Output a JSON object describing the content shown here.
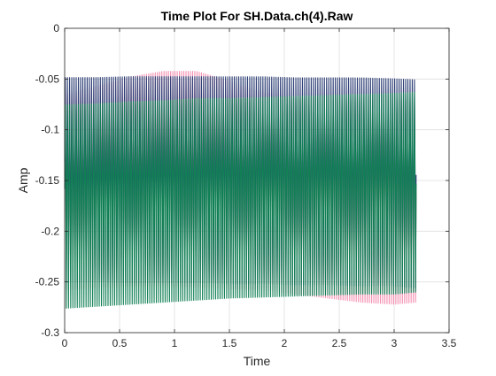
{
  "chart_data": {
    "type": "line",
    "title": "Time Plot For SH.Data.ch(4).Raw",
    "xlabel": "Time",
    "ylabel": "Amp",
    "xlim": [
      0,
      3.5
    ],
    "ylim": [
      -0.3,
      0
    ],
    "grid": true,
    "legend": "none",
    "x_ticks": [
      {
        "value": 0,
        "label": "0"
      },
      {
        "value": 0.5,
        "label": "0.5"
      },
      {
        "value": 1,
        "label": "1"
      },
      {
        "value": 1.5,
        "label": "1.5"
      },
      {
        "value": 2,
        "label": "2"
      },
      {
        "value": 2.5,
        "label": "2.5"
      },
      {
        "value": 3,
        "label": "3"
      },
      {
        "value": 3.5,
        "label": "3.5"
      }
    ],
    "y_ticks": [
      {
        "value": 0,
        "label": "0"
      },
      {
        "value": -0.05,
        "label": "-0.05"
      },
      {
        "value": -0.1,
        "label": "-0.1"
      },
      {
        "value": -0.15,
        "label": "-0.15"
      },
      {
        "value": -0.2,
        "label": "-0.2"
      },
      {
        "value": -0.25,
        "label": "-0.25"
      },
      {
        "value": -0.3,
        "label": "-0.3"
      }
    ],
    "series": [
      {
        "color": "#f48fb1",
        "time_range": [
          0,
          3.2
        ],
        "cycles": 160,
        "envelope": {
          "t": [
            0,
            0.3,
            0.6,
            0.9,
            1.2,
            1.5,
            1.8,
            2.1,
            2.4,
            2.7,
            3.0,
            3.2
          ],
          "max": [
            -0.048,
            -0.04,
            -0.03,
            -0.024,
            -0.024,
            -0.034,
            -0.046,
            -0.051,
            -0.053,
            -0.053,
            -0.052,
            -0.054
          ],
          "min": [
            -0.258,
            -0.256,
            -0.254,
            -0.254,
            -0.255,
            -0.257,
            -0.258,
            -0.262,
            -0.266,
            -0.27,
            -0.272,
            -0.27
          ]
        }
      },
      {
        "color": "#2c3e75",
        "time_range": [
          0,
          3.2
        ],
        "cycles": 160,
        "envelope": {
          "t": [
            0,
            0.3,
            0.6,
            0.9,
            1.2,
            1.5,
            1.8,
            2.1,
            2.4,
            2.7,
            3.0,
            3.2
          ],
          "max": [
            -0.031,
            -0.031,
            -0.03,
            -0.03,
            -0.03,
            -0.03,
            -0.03,
            -0.031,
            -0.031,
            -0.031,
            -0.032,
            -0.033
          ],
          "min": [
            -0.25,
            -0.25,
            -0.251,
            -0.251,
            -0.251,
            -0.252,
            -0.252,
            -0.253,
            -0.253,
            -0.254,
            -0.254,
            -0.256
          ]
        }
      },
      {
        "color": "#118055",
        "time_range": [
          0,
          3.2
        ],
        "cycles": 160,
        "envelope": {
          "t": [
            0,
            0.3,
            0.6,
            0.9,
            1.2,
            1.5,
            1.8,
            2.1,
            2.4,
            2.7,
            3.0,
            3.2
          ],
          "max": [
            -0.058,
            -0.057,
            -0.055,
            -0.054,
            -0.052,
            -0.052,
            -0.051,
            -0.05,
            -0.049,
            -0.048,
            -0.047,
            -0.046
          ],
          "min": [
            -0.276,
            -0.274,
            -0.272,
            -0.27,
            -0.268,
            -0.266,
            -0.265,
            -0.264,
            -0.263,
            -0.262,
            -0.262,
            -0.26
          ]
        }
      }
    ]
  }
}
